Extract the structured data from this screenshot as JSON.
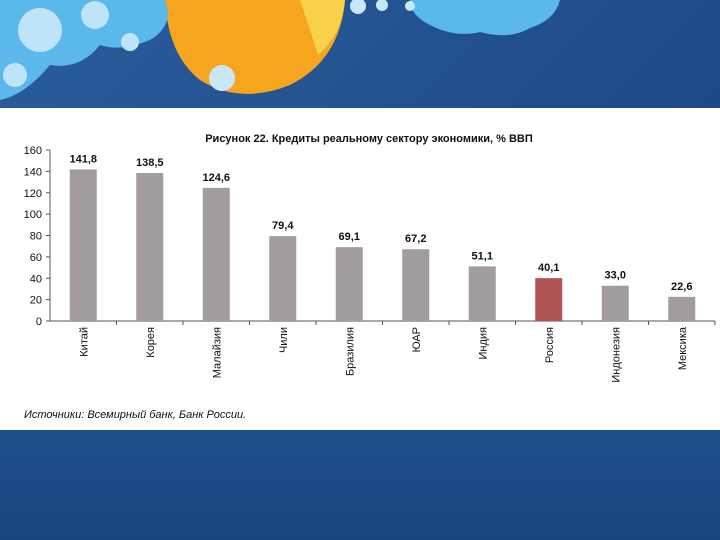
{
  "colors": {
    "bar": "#a39c9f",
    "highlight_bar": "#b05456",
    "background_blue": "#1f4f8c"
  },
  "chart_data": {
    "type": "bar",
    "title": "Рисунок 22. Кредиты реальному сектору экономики, % ВВП",
    "categories": [
      "Китай",
      "Корея",
      "Малайзия",
      "Чили",
      "Бразилия",
      "ЮАР",
      "Индия",
      "Россия",
      "Индонезия",
      "Мексика"
    ],
    "values": [
      141.8,
      138.5,
      124.6,
      79.4,
      69.1,
      67.2,
      51.1,
      40.1,
      33.0,
      22.6
    ],
    "data_labels": [
      "141,8",
      "138,5",
      "124,6",
      "79,4",
      "69,1",
      "67,2",
      "51,1",
      "40,1",
      "33,0",
      "22,6"
    ],
    "highlight_category": "Россия",
    "ylim": [
      0,
      160
    ],
    "yticks": [
      0,
      20,
      40,
      60,
      80,
      100,
      120,
      140,
      160
    ],
    "grid": false,
    "legend": "none",
    "source": "Источники: Всемирный банк, Банк России."
  }
}
